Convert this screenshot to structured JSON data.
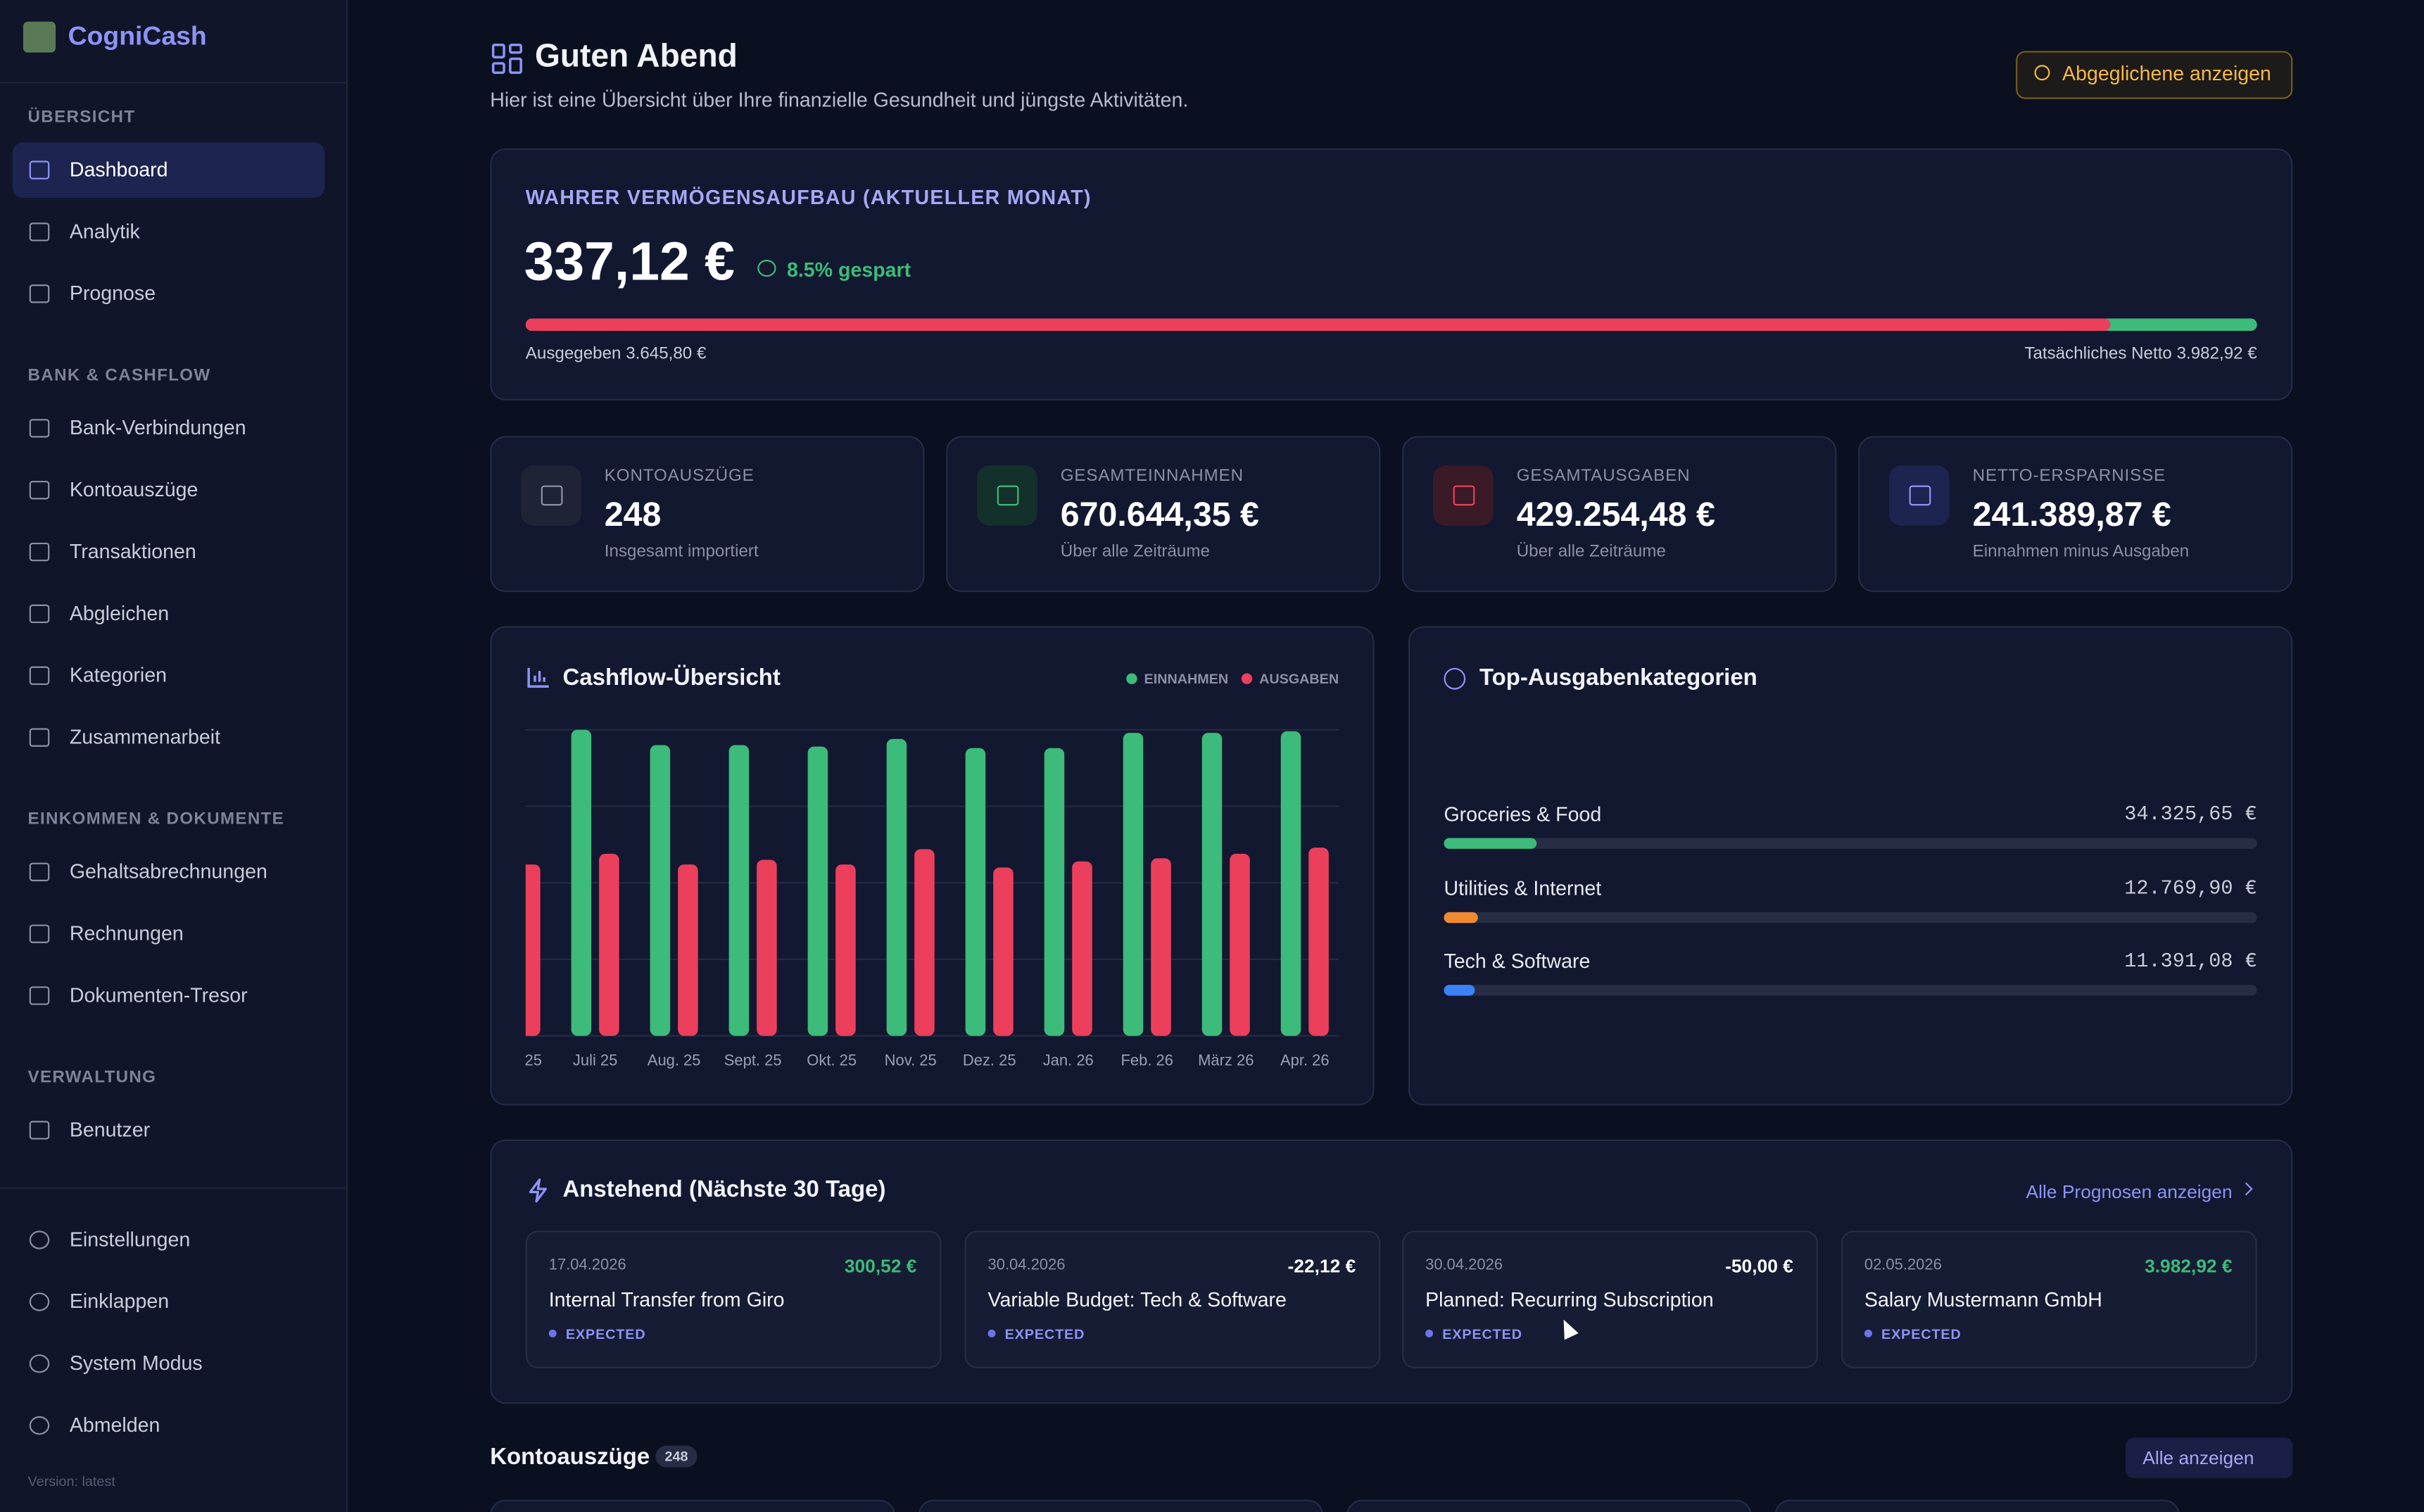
{
  "sidebar": {
    "brand": "CogniCash",
    "sections": [
      {
        "title": "ÜBERSICHT",
        "items": [
          "Dashboard",
          "Analytik",
          "Prognose"
        ]
      },
      {
        "title": "BANK & CASHFLOW",
        "items": [
          "Bank-Verbindungen",
          "Kontoauszüge",
          "Transaktionen",
          "Abgleichen",
          "Kategorien",
          "Zusammenarbeit"
        ]
      },
      {
        "title": "EINKOMMEN & DOKUMENTE",
        "items": [
          "Gehaltsabrechnungen",
          "Rechnungen",
          "Dokumenten-Tresor"
        ]
      },
      {
        "title": "VERWALTUNG",
        "items": [
          "Benutzer"
        ]
      }
    ],
    "footer": [
      "Einstellungen",
      "Einklappen",
      "System Modus",
      "Abmelden"
    ],
    "version": "Version: latest"
  },
  "header": {
    "title": "Guten Abend",
    "subtitle": "Hier ist eine Übersicht über Ihre finanzielle Gesundheit und jüngste Aktivitäten.",
    "button": "Abgeglichene anzeigen"
  },
  "wealth": {
    "title": "WAHRER VERMÖGENSAUFBAU (AKTUELLER MONAT)",
    "amount": "337,12 €",
    "saved": "8.5% gespart",
    "spent": {
      "value": 3645.8,
      "label": "Ausgegeben 3.645,80 €"
    },
    "net": {
      "value": 3982.92,
      "label": "Tatsächliches Netto 3.982,92 €"
    }
  },
  "stats": [
    {
      "label": "KONTOAUSZÜGE",
      "value": "248",
      "sub": "Insgesamt importiert"
    },
    {
      "label": "GESAMTEINNAHMEN",
      "value": "670.644,35 €",
      "sub": "Über alle Zeiträume"
    },
    {
      "label": "GESAMTAUSGABEN",
      "value": "429.254,48 €",
      "sub": "Über alle Zeiträume"
    },
    {
      "label": "NETTO-ERSPARNISSE",
      "value": "241.389,87 €",
      "sub": "Einnahmen minus Ausgaben"
    }
  ],
  "chart_data": [
    {
      "type": "bar",
      "title": "Cashflow-Übersicht",
      "categories": [
        "25",
        "Juli 25",
        "Aug. 25",
        "Sept. 25",
        "Okt. 25",
        "Nov. 25",
        "Dez. 25",
        "Jan. 26",
        "Feb. 26",
        "März 26",
        "Apr. 26"
      ],
      "series": [
        {
          "name": "EINNAHMEN",
          "color": "#3dbb7a",
          "values": [
            null,
            4.0,
            3.8,
            3.8,
            3.78,
            3.88,
            3.76,
            3.76,
            3.96,
            3.96,
            3.98
          ]
        },
        {
          "name": "AUSGABEN",
          "color": "#ec3f5c",
          "values": [
            2.24,
            2.38,
            2.24,
            2.3,
            2.24,
            2.44,
            2.2,
            2.28,
            2.32,
            2.38,
            2.46
          ]
        }
      ],
      "ylim": [
        0,
        4
      ],
      "yticks": [
        0,
        1,
        2,
        3,
        4
      ],
      "grid": true
    },
    {
      "type": "hbar",
      "title": "Top-Ausgabenkategorien",
      "categories": [
        "Groceries & Food",
        "Utilities & Internet",
        "Tech & Software"
      ],
      "values": [
        34325.65,
        12769.9,
        11391.08
      ],
      "value_labels": [
        "34.325,65 €",
        "12.769,90 €",
        "11.391,08 €"
      ],
      "colors": [
        "#3dbb7a",
        "#f08a30",
        "#3b82f6"
      ],
      "xlim": [
        0,
        300000
      ]
    }
  ],
  "upcoming": {
    "title": "Anstehend (Nächste 30 Tage)",
    "link": "Alle Prognosen anzeigen",
    "items": [
      {
        "date": "17.04.2026",
        "amount": "300,52 €",
        "title": "Internal Transfer from Giro",
        "status": "EXPECTED"
      },
      {
        "date": "30.04.2026",
        "amount": "-22,12 €",
        "title": "Variable Budget: Tech & Software",
        "status": "EXPECTED"
      },
      {
        "date": "30.04.2026",
        "amount": "-50,00 €",
        "title": "Planned: Recurring Subscription",
        "status": "EXPECTED"
      },
      {
        "date": "02.05.2026",
        "amount": "3.982,92 €",
        "title": "Salary Mustermann GmbH",
        "status": "EXPECTED"
      }
    ]
  },
  "statements": {
    "title": "Kontoauszüge",
    "count": "248",
    "link": "Alle anzeigen"
  }
}
